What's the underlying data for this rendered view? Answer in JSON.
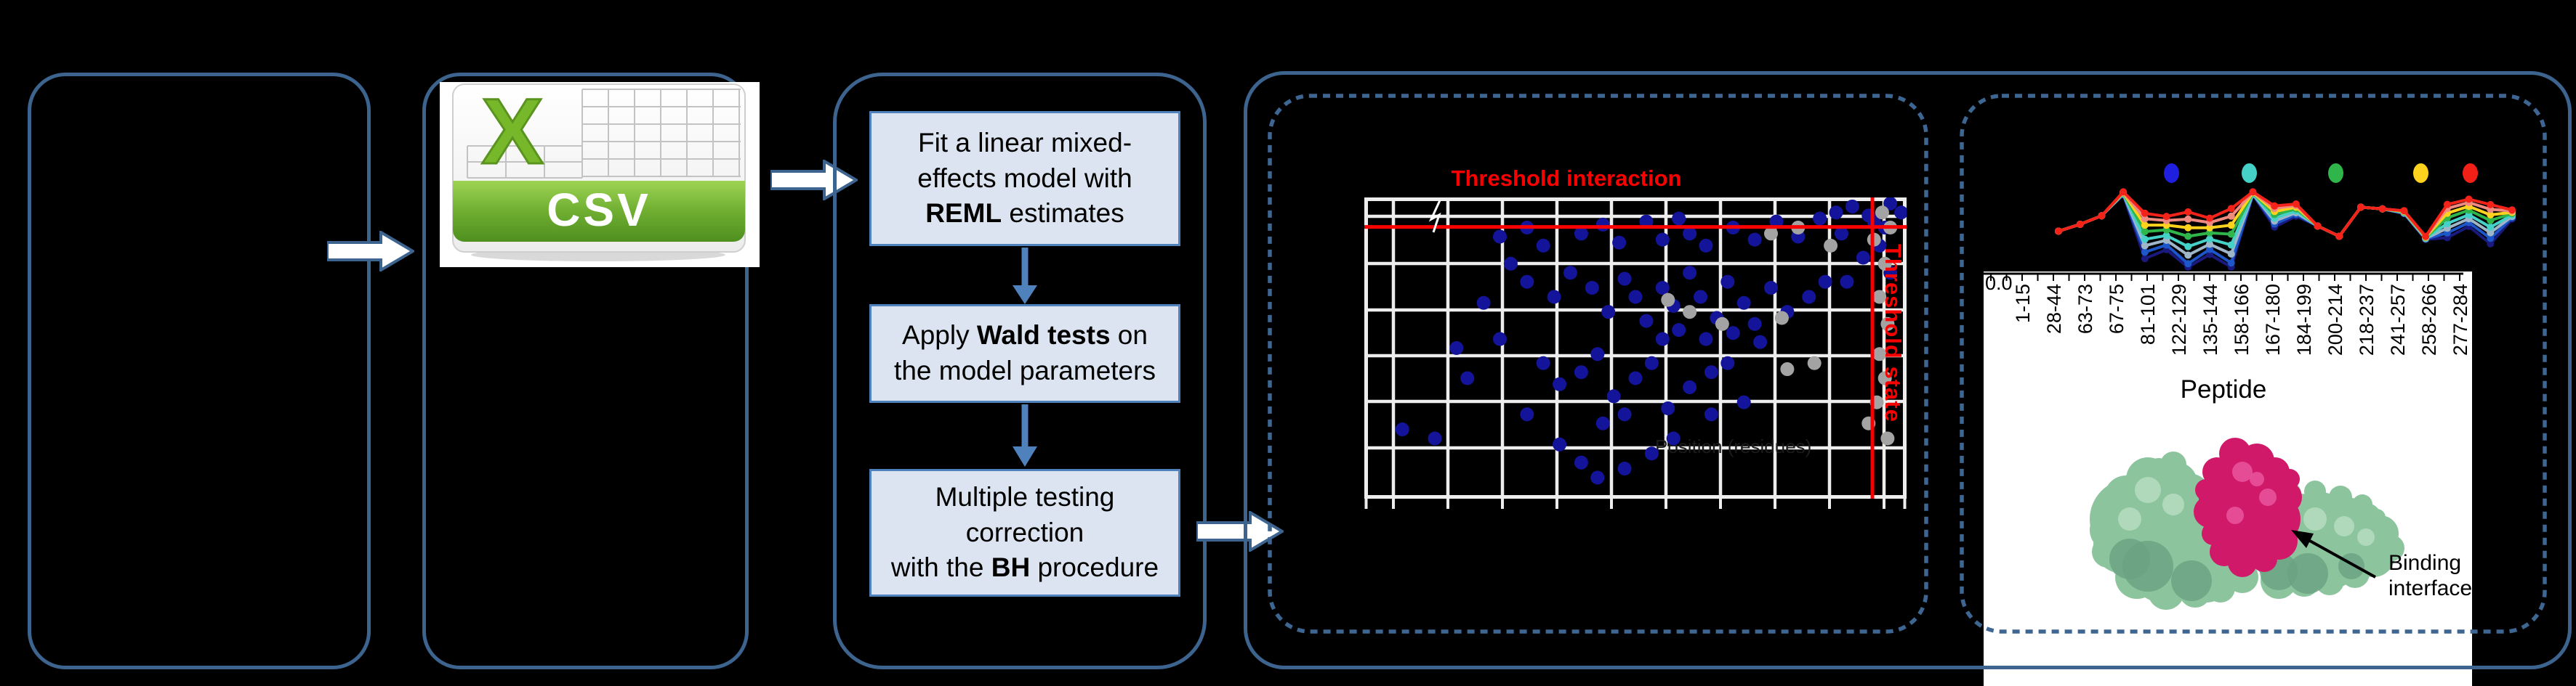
{
  "flowchart": {
    "step1": {
      "line1": "Fit a linear mixed-",
      "line2": "effects model with",
      "bold": "REML",
      "rest": " estimates"
    },
    "step2": {
      "pre": "Apply ",
      "bold": "Wald tests",
      "post": " on",
      "line2": "the model parameters"
    },
    "step3": {
      "line1": "Multiple testing",
      "line2": "correction",
      "pre": "with the ",
      "bold": "BH",
      "post": " procedure"
    }
  },
  "csv_icon": {
    "letter": "X",
    "label": "CSV",
    "green": "#76b82a",
    "banner_green": "#5a9a26"
  },
  "scatter_panel": {
    "title": "Threshold interaction",
    "side_label": "Threshold state",
    "faint_label": "Position (residues)"
  },
  "peptide_panel": {
    "y_first_tick": "0.0",
    "x_axis_label": "Peptide",
    "annotation_line1": "Binding",
    "annotation_line2": "interface",
    "peptide_labels": [
      "1-15",
      "28-44",
      "63-73",
      "67-75",
      "81-101",
      "122-129",
      "135-144",
      "158-166",
      "167-180",
      "184-199",
      "200-214",
      "218-237",
      "241-257",
      "258-266",
      "277-284"
    ]
  },
  "colors": {
    "background": "#000000",
    "solid_border": "#3c648e",
    "dashed_border": "#3e6693",
    "flow_box_fill": "#dbe4f0",
    "flow_box_border": "#4f81bd",
    "flow_arrow": "#4f81bd",
    "threshold_red": "#fb0000",
    "scatter_blue": "#14149b",
    "scatter_gray": "#a3a3a3",
    "grid_white": "#ededed",
    "protein_green": "#8cc49d",
    "protein_magenta": "#d1196a"
  },
  "chart_data": [
    {
      "type": "scatter",
      "title": "Threshold interaction",
      "xlabel": "",
      "ylabel": "",
      "grid": "on",
      "threshold_interaction_y_frac": 0.098,
      "threshold_state_x_frac": 0.937,
      "blue_points": [
        [
          0.25,
          0.13
        ],
        [
          0.3,
          0.1
        ],
        [
          0.33,
          0.16
        ],
        [
          0.27,
          0.22
        ],
        [
          0.4,
          0.12
        ],
        [
          0.44,
          0.09
        ],
        [
          0.47,
          0.15
        ],
        [
          0.52,
          0.08
        ],
        [
          0.55,
          0.14
        ],
        [
          0.58,
          0.07
        ],
        [
          0.6,
          0.12
        ],
        [
          0.63,
          0.16
        ],
        [
          0.68,
          0.1
        ],
        [
          0.72,
          0.14
        ],
        [
          0.76,
          0.08
        ],
        [
          0.8,
          0.13
        ],
        [
          0.84,
          0.07
        ],
        [
          0.88,
          0.12
        ],
        [
          0.93,
          0.06
        ],
        [
          0.96,
          0.1
        ],
        [
          0.99,
          0.05
        ],
        [
          0.9,
          0.03
        ],
        [
          0.97,
          0.02
        ],
        [
          0.3,
          0.28
        ],
        [
          0.35,
          0.33
        ],
        [
          0.38,
          0.25
        ],
        [
          0.42,
          0.3
        ],
        [
          0.45,
          0.38
        ],
        [
          0.48,
          0.27
        ],
        [
          0.5,
          0.33
        ],
        [
          0.52,
          0.41
        ],
        [
          0.55,
          0.3
        ],
        [
          0.57,
          0.36
        ],
        [
          0.6,
          0.25
        ],
        [
          0.62,
          0.33
        ],
        [
          0.65,
          0.4
        ],
        [
          0.67,
          0.28
        ],
        [
          0.7,
          0.35
        ],
        [
          0.72,
          0.42
        ],
        [
          0.75,
          0.3
        ],
        [
          0.78,
          0.38
        ],
        [
          0.82,
          0.33
        ],
        [
          0.85,
          0.28
        ],
        [
          0.58,
          0.44
        ],
        [
          0.63,
          0.47
        ],
        [
          0.68,
          0.45
        ],
        [
          0.73,
          0.48
        ],
        [
          0.55,
          0.47
        ],
        [
          0.33,
          0.55
        ],
        [
          0.36,
          0.62
        ],
        [
          0.4,
          0.58
        ],
        [
          0.43,
          0.52
        ],
        [
          0.46,
          0.66
        ],
        [
          0.5,
          0.6
        ],
        [
          0.53,
          0.55
        ],
        [
          0.56,
          0.7
        ],
        [
          0.6,
          0.63
        ],
        [
          0.64,
          0.58
        ],
        [
          0.67,
          0.55
        ],
        [
          0.64,
          0.72
        ],
        [
          0.7,
          0.68
        ],
        [
          0.44,
          0.75
        ],
        [
          0.48,
          0.72
        ],
        [
          0.07,
          0.77
        ],
        [
          0.13,
          0.8
        ],
        [
          0.19,
          0.6
        ],
        [
          0.3,
          0.72
        ],
        [
          0.36,
          0.82
        ],
        [
          0.4,
          0.88
        ],
        [
          0.43,
          0.93
        ],
        [
          0.48,
          0.9
        ],
        [
          0.53,
          0.85
        ],
        [
          0.57,
          0.8
        ],
        [
          0.92,
          0.2
        ],
        [
          0.95,
          0.16
        ],
        [
          0.89,
          0.28
        ],
        [
          0.97,
          0.25
        ],
        [
          0.87,
          0.05
        ],
        [
          0.94,
          0.08
        ],
        [
          0.22,
          0.35
        ],
        [
          0.25,
          0.47
        ],
        [
          0.17,
          0.5
        ]
      ],
      "gray_points": [
        [
          0.955,
          0.05
        ],
        [
          0.97,
          0.1
        ],
        [
          0.94,
          0.14
        ],
        [
          0.96,
          0.22
        ],
        [
          0.95,
          0.33
        ],
        [
          0.965,
          0.42
        ],
        [
          0.95,
          0.52
        ],
        [
          0.96,
          0.6
        ],
        [
          0.945,
          0.68
        ],
        [
          0.93,
          0.75
        ],
        [
          0.965,
          0.8
        ],
        [
          0.56,
          0.34
        ],
        [
          0.6,
          0.38
        ],
        [
          0.66,
          0.42
        ],
        [
          0.77,
          0.4
        ],
        [
          0.83,
          0.55
        ],
        [
          0.78,
          0.57
        ],
        [
          0.75,
          0.12
        ],
        [
          0.8,
          0.1
        ],
        [
          0.86,
          0.16
        ]
      ]
    },
    {
      "type": "line",
      "categories": [
        "1-15",
        "28-44",
        "63-73",
        "67-75",
        "81-101",
        "122-129",
        "135-144",
        "158-166",
        "167-180",
        "184-199",
        "200-214",
        "218-237",
        "241-257",
        "258-266",
        "277-284"
      ],
      "xlabel": "Peptide",
      "y_first_tick": "0.0",
      "legend_position": "top",
      "legend_dot_colors": [
        "#1f1fe0",
        "#45d0c8",
        "#2fb54a",
        "#ffd21e",
        "#f32017"
      ],
      "base_profile": [
        0.58,
        0.5,
        0.4,
        0.12,
        0.36,
        0.4,
        0.34,
        0.42,
        0.3,
        0.12,
        0.28,
        0.26,
        0.52,
        0.64,
        0.3,
        0.32,
        0.34,
        0.64,
        0.26,
        0.2,
        0.26,
        0.33
      ],
      "dip_profile": [
        0,
        0,
        0,
        0.05,
        0.75,
        0.55,
        1.0,
        0.6,
        1.05,
        0.05,
        0.35,
        0.2,
        0,
        0,
        0,
        0,
        0.05,
        0.05,
        0.55,
        0.45,
        0.65,
        0.15
      ],
      "series": [
        {
          "name": "series-navy",
          "color": "#1a1a7e",
          "depth": 0.72
        },
        {
          "name": "series-blue",
          "color": "#1d56c8",
          "depth": 0.62
        },
        {
          "name": "series-steel",
          "color": "#9fb6c8",
          "depth": 0.52
        },
        {
          "name": "series-cyan",
          "color": "#45d0c8",
          "depth": 0.42
        },
        {
          "name": "series-green",
          "color": "#2fb54a",
          "depth": 0.3
        },
        {
          "name": "series-yellow",
          "color": "#ffd21e",
          "depth": 0.2
        },
        {
          "name": "series-salmon",
          "color": "#ef8a80",
          "depth": 0.1
        },
        {
          "name": "series-red",
          "color": "#f3231a",
          "depth": 0.015
        }
      ]
    }
  ]
}
